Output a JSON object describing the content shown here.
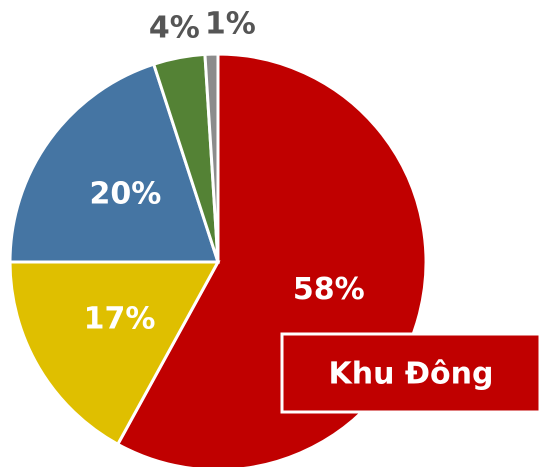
{
  "chart_data": {
    "type": "pie",
    "values": [
      58,
      17,
      20,
      4,
      1
    ],
    "value_labels": [
      "58%",
      "17%",
      "20%",
      "4%",
      "1%"
    ],
    "colors": [
      "#c00000",
      "#dfbf00",
      "#4575a3",
      "#548235",
      "#8c8c8c"
    ],
    "annotation": "Khu Đông"
  }
}
